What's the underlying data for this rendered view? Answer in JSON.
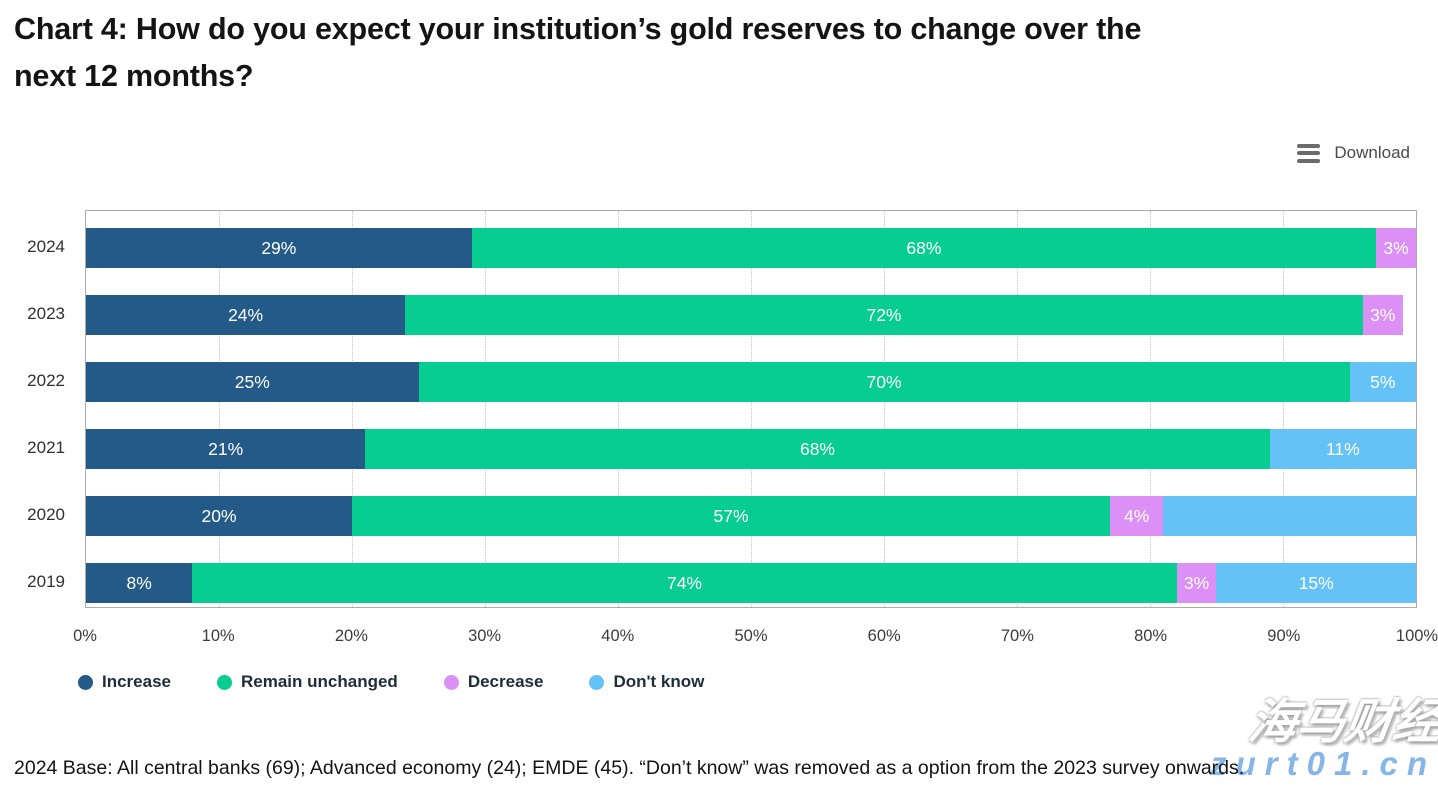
{
  "page": {
    "title_line1": "Chart 4: How do you expect your institution’s gold reserves to change over the",
    "title_line2": "next 12 months?"
  },
  "toolbar": {
    "download_label": "Download",
    "menu_icon": "hamburger-menu-icon"
  },
  "chart_data": {
    "type": "bar",
    "orientation": "horizontal",
    "stacked": true,
    "title": "Chart 4: How do you expect your institution’s gold reserves to change over the next 12 months?",
    "categories": [
      "2024",
      "2023",
      "2022",
      "2021",
      "2020",
      "2019"
    ],
    "xlim": [
      0,
      100
    ],
    "x_ticks": [
      "0%",
      "10%",
      "20%",
      "30%",
      "40%",
      "50%",
      "60%",
      "70%",
      "80%",
      "90%",
      "100%"
    ],
    "grid": "vertical-dotted",
    "legend_position": "bottom",
    "series": [
      {
        "name": "Increase",
        "color": "#235A87",
        "values": [
          29,
          24,
          25,
          21,
          20,
          8
        ],
        "labels": [
          "29%",
          "24%",
          "25%",
          "21%",
          "20%",
          "8%"
        ]
      },
      {
        "name": "Remain unchanged",
        "color": "#07CD91",
        "values": [
          68,
          72,
          70,
          68,
          57,
          74
        ],
        "labels": [
          "68%",
          "72%",
          "70%",
          "68%",
          "57%",
          "74%"
        ]
      },
      {
        "name": "Decrease",
        "color": "#DC90F5",
        "values": [
          3,
          3,
          0,
          0,
          4,
          3
        ],
        "labels": [
          "3%",
          "3%",
          "",
          "",
          "4%",
          "3%"
        ]
      },
      {
        "name": "Don't know",
        "color": "#64C2F6",
        "values": [
          0,
          0,
          5,
          11,
          19,
          15
        ],
        "labels": [
          "",
          "",
          "5%",
          "11%",
          "",
          "15%"
        ]
      }
    ]
  },
  "footer": {
    "note": "2024 Base: All central banks (69); Advanced economy (24); EMDE (45). “Don’t know” was removed as a option from the 2023 survey onwards."
  },
  "watermark": {
    "cn_text": "海马财经",
    "domain_text": "zurt01.cn"
  }
}
